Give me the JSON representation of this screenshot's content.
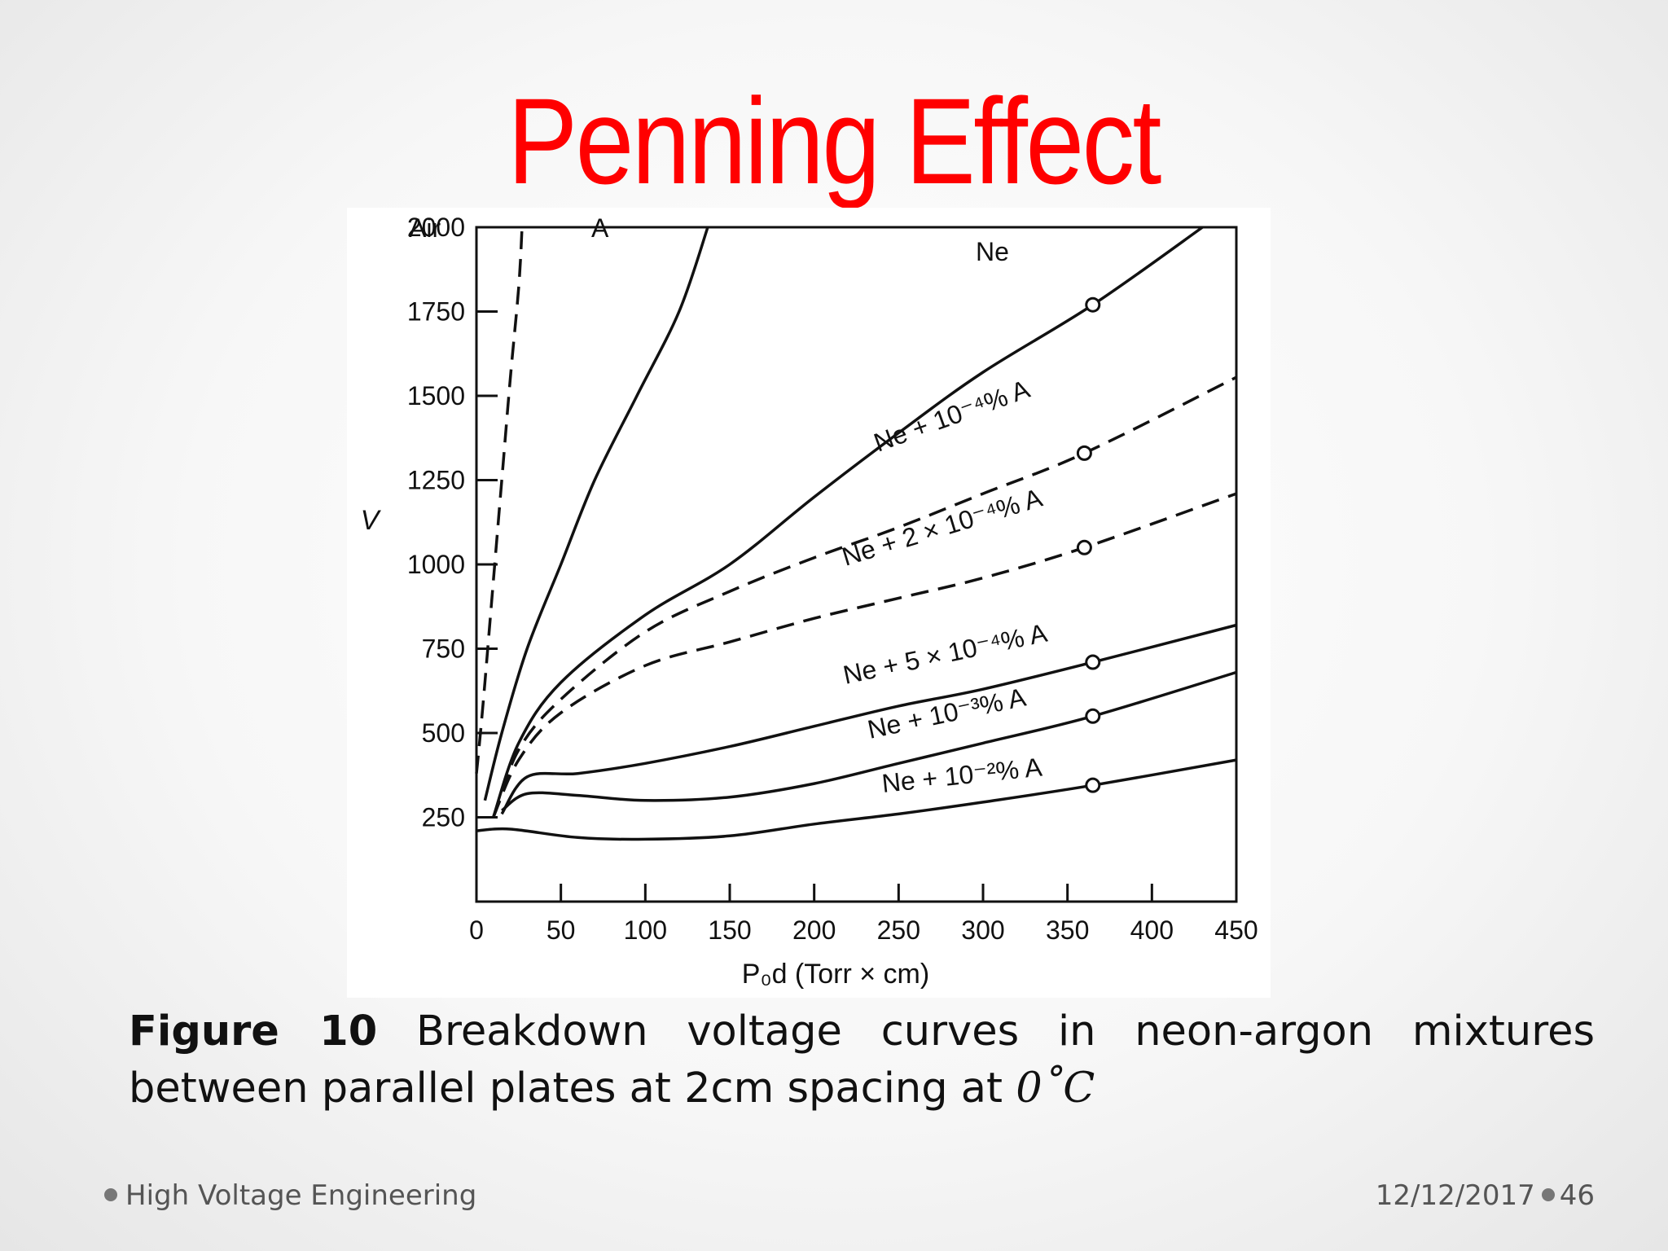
{
  "slide": {
    "title": "Penning Effect",
    "caption_label": "Figure 10",
    "caption_text": "Breakdown voltage curves in neon-argon mixtures between parallel plates at 2cm spacing at",
    "caption_math": "0˚C",
    "footer_left": "High Voltage Engineering",
    "footer_date": "12/12/2017",
    "footer_page": "46",
    "title_color": "#ff0000"
  },
  "chart_data": {
    "type": "line",
    "xlabel": "P₀d (Torr × cm)",
    "ylabel": "V",
    "xlim": [
      0,
      450
    ],
    "ylim": [
      0,
      2000
    ],
    "x_ticks": [
      0,
      50,
      100,
      150,
      200,
      250,
      300,
      350,
      400,
      450
    ],
    "y_ticks": [
      250,
      500,
      750,
      1000,
      1250,
      1500,
      1750,
      2000
    ],
    "grid": false,
    "series": [
      {
        "name": "Air",
        "style": "dashed",
        "points": [
          [
            0,
            380
          ],
          [
            2,
            480
          ],
          [
            5,
            650
          ],
          [
            10,
            950
          ],
          [
            15,
            1250
          ],
          [
            20,
            1550
          ],
          [
            25,
            1820
          ],
          [
            27,
            2000
          ]
        ]
      },
      {
        "name": "A",
        "style": "solid",
        "points": [
          [
            5,
            300
          ],
          [
            15,
            500
          ],
          [
            30,
            750
          ],
          [
            50,
            1000
          ],
          [
            70,
            1250
          ],
          [
            95,
            1500
          ],
          [
            120,
            1750
          ],
          [
            137,
            2000
          ]
        ]
      },
      {
        "name": "Ne",
        "style": "solid",
        "points": [
          [
            10,
            250
          ],
          [
            25,
            470
          ],
          [
            50,
            650
          ],
          [
            100,
            850
          ],
          [
            150,
            1000
          ],
          [
            200,
            1200
          ],
          [
            250,
            1390
          ],
          [
            300,
            1570
          ],
          [
            365,
            1770
          ],
          [
            430,
            2000
          ]
        ],
        "markers": [
          [
            365,
            1770
          ]
        ]
      },
      {
        "name": "Ne + 10⁻⁴% A",
        "style": "dashed",
        "points": [
          [
            10,
            250
          ],
          [
            25,
            450
          ],
          [
            50,
            600
          ],
          [
            100,
            800
          ],
          [
            150,
            920
          ],
          [
            200,
            1020
          ],
          [
            250,
            1110
          ],
          [
            300,
            1210
          ],
          [
            360,
            1330
          ],
          [
            450,
            1555
          ]
        ],
        "markers": [
          [
            360,
            1330
          ]
        ]
      },
      {
        "name": "Ne + 2 × 10⁻⁴% A",
        "style": "dashed",
        "points": [
          [
            10,
            250
          ],
          [
            25,
            420
          ],
          [
            50,
            560
          ],
          [
            100,
            700
          ],
          [
            150,
            770
          ],
          [
            200,
            840
          ],
          [
            250,
            900
          ],
          [
            300,
            960
          ],
          [
            360,
            1050
          ],
          [
            450,
            1210
          ]
        ],
        "markers": [
          [
            360,
            1050
          ]
        ]
      },
      {
        "name": "Ne + 5 × 10⁻⁴% A",
        "style": "solid",
        "points": [
          [
            15,
            260
          ],
          [
            30,
            370
          ],
          [
            60,
            380
          ],
          [
            100,
            410
          ],
          [
            150,
            460
          ],
          [
            200,
            520
          ],
          [
            250,
            580
          ],
          [
            300,
            630
          ],
          [
            365,
            710
          ],
          [
            450,
            820
          ]
        ],
        "markers": [
          [
            365,
            710
          ]
        ]
      },
      {
        "name": "Ne + 10⁻³% A",
        "style": "solid",
        "points": [
          [
            15,
            270
          ],
          [
            30,
            320
          ],
          [
            60,
            315
          ],
          [
            100,
            300
          ],
          [
            150,
            310
          ],
          [
            200,
            350
          ],
          [
            250,
            410
          ],
          [
            300,
            470
          ],
          [
            365,
            550
          ],
          [
            450,
            680
          ]
        ],
        "markers": [
          [
            365,
            550
          ]
        ]
      },
      {
        "name": "Ne + 10⁻²% A",
        "style": "solid",
        "points": [
          [
            0,
            210
          ],
          [
            20,
            215
          ],
          [
            60,
            190
          ],
          [
            100,
            185
          ],
          [
            150,
            195
          ],
          [
            200,
            230
          ],
          [
            250,
            260
          ],
          [
            300,
            295
          ],
          [
            365,
            345
          ],
          [
            450,
            420
          ]
        ],
        "markers": [
          [
            365,
            345
          ]
        ]
      }
    ]
  }
}
